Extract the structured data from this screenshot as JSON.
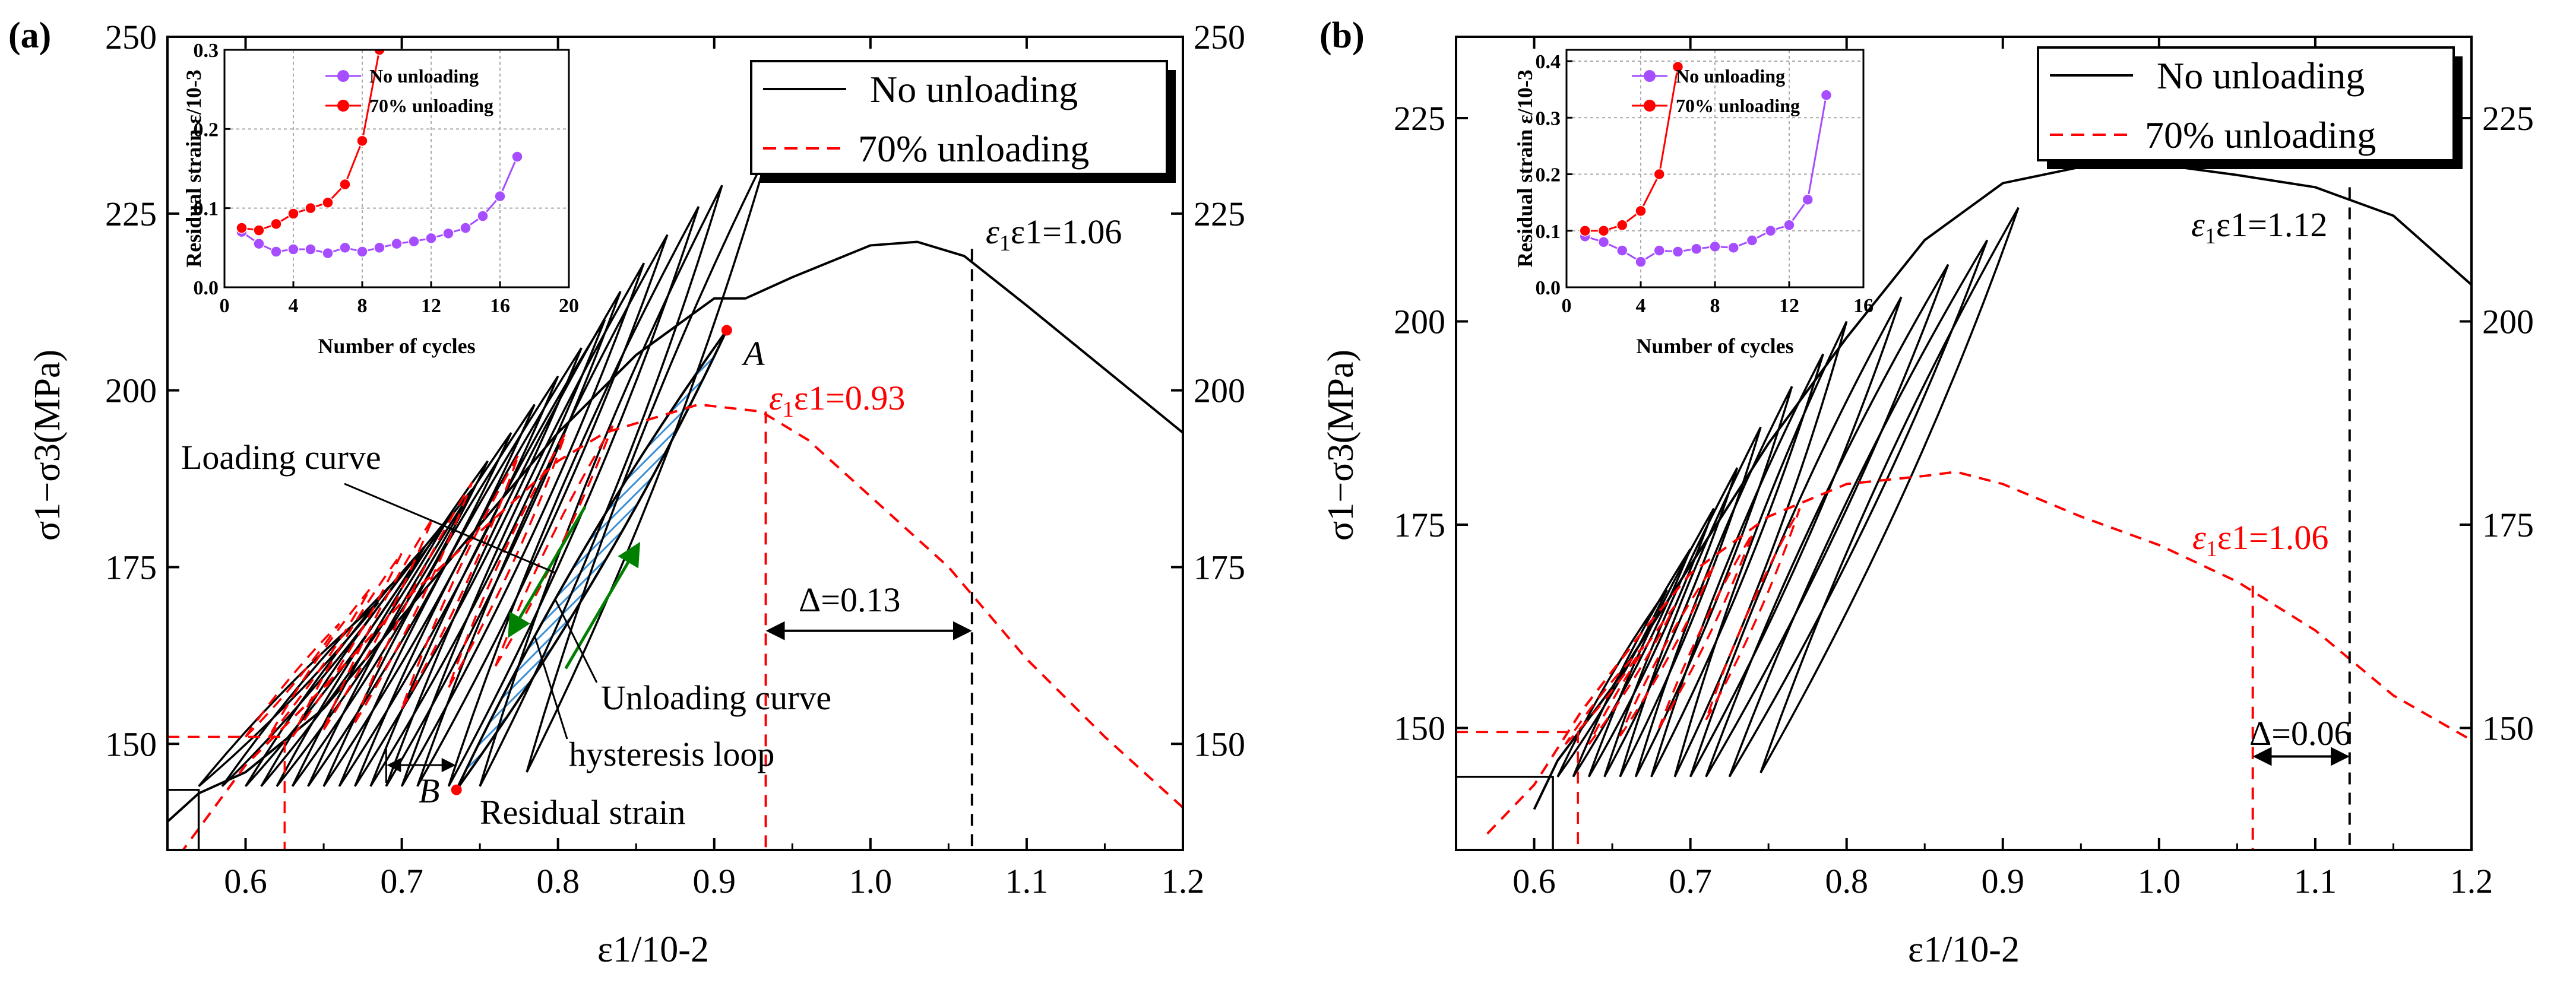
{
  "chart_data": [
    {
      "type": "line",
      "panel_label": "(a)",
      "xlabel": "ε1/10-2",
      "ylabel": "σ1−σ3(MPa)",
      "xlim": [
        0.55,
        1.2
      ],
      "ylim": [
        135,
        250
      ],
      "x_ticks": [
        "0.6",
        "0.7",
        "0.8",
        "0.9",
        "1.0",
        "1.1",
        "1.2"
      ],
      "y_ticks": [
        "150",
        "175",
        "200",
        "225",
        "250"
      ],
      "right_y_ticks": [
        "150",
        "175",
        "200",
        "225",
        "250"
      ],
      "legend": [
        "No unloading",
        "70% unloading"
      ],
      "colors": {
        "no_unloading": "#000000",
        "unloading_70": "#ff0000",
        "arrow": "#008000",
        "hatch": "#3a8fd6"
      },
      "series": [
        {
          "name": "No unloading",
          "style": "solid",
          "envelope": [
            [
              0.55,
              139
            ],
            [
              0.57,
              143
            ],
            [
              0.6,
              146
            ],
            [
              0.65,
              155
            ],
            [
              0.7,
              168
            ],
            [
              0.75,
              181
            ],
            [
              0.8,
              194
            ],
            [
              0.85,
              205
            ],
            [
              0.9,
              213
            ],
            [
              0.92,
              213
            ],
            [
              0.95,
              216
            ],
            [
              1.0,
              220.5
            ],
            [
              1.03,
              221
            ],
            [
              1.06,
              219
            ],
            [
              1.1,
              212
            ],
            [
              1.15,
              203
            ],
            [
              1.2,
              194
            ]
          ],
          "loops": [
            {
              "base": [
                0.57,
                144
              ],
              "peak": [
                0.685,
                170
              ]
            },
            {
              "base": [
                0.585,
                144
              ],
              "peak": [
                0.7,
                174
              ]
            },
            {
              "base": [
                0.6,
                144
              ],
              "peak": [
                0.715,
                178
              ]
            },
            {
              "base": [
                0.61,
                144
              ],
              "peak": [
                0.73,
                182
              ]
            },
            {
              "base": [
                0.62,
                144
              ],
              "peak": [
                0.745,
                186
              ]
            },
            {
              "base": [
                0.63,
                144
              ],
              "peak": [
                0.755,
                190
              ]
            },
            {
              "base": [
                0.64,
                144
              ],
              "peak": [
                0.77,
                194
              ]
            },
            {
              "base": [
                0.65,
                144
              ],
              "peak": [
                0.785,
                198
              ]
            },
            {
              "base": [
                0.66,
                144
              ],
              "peak": [
                0.8,
                202
              ]
            },
            {
              "base": [
                0.67,
                144
              ],
              "peak": [
                0.815,
                206
              ]
            },
            {
              "base": [
                0.68,
                144
              ],
              "peak": [
                0.83,
                210
              ]
            },
            {
              "base": [
                0.69,
                144
              ],
              "peak": [
                0.84,
                214
              ]
            },
            {
              "base": [
                0.7,
                144
              ],
              "peak": [
                0.855,
                218
              ]
            },
            {
              "base": [
                0.71,
                144
              ],
              "peak": [
                0.87,
                222
              ]
            },
            {
              "base": [
                0.73,
                144
              ],
              "peak": [
                0.89,
                226
              ]
            },
            {
              "base": [
                0.75,
                144
              ],
              "peak": [
                0.905,
                229
              ]
            },
            {
              "base": [
                0.78,
                146
              ],
              "peak": [
                0.935,
                234
              ]
            }
          ]
        },
        {
          "name": "70% unloading",
          "style": "dashed",
          "envelope": [
            [
              0.55,
              132
            ],
            [
              0.58,
              141
            ],
            [
              0.6,
              147
            ],
            [
              0.65,
              158
            ],
            [
              0.7,
              170
            ],
            [
              0.75,
              180
            ],
            [
              0.8,
              190
            ],
            [
              0.83,
              194
            ],
            [
              0.86,
              196
            ],
            [
              0.89,
              198
            ],
            [
              0.93,
              197
            ],
            [
              0.96,
              193
            ],
            [
              1.0,
              185
            ],
            [
              1.05,
              175
            ],
            [
              1.1,
              162
            ],
            [
              1.15,
              151
            ],
            [
              1.2,
              141
            ]
          ],
          "loops": [
            {
              "base": [
                0.6,
                151
              ],
              "peak": [
                0.66,
                167
              ]
            },
            {
              "base": [
                0.615,
                151
              ],
              "peak": [
                0.68,
                172
              ]
            },
            {
              "base": [
                0.63,
                151
              ],
              "peak": [
                0.7,
                177
              ]
            },
            {
              "base": [
                0.65,
                152
              ],
              "peak": [
                0.72,
                182
              ]
            },
            {
              "base": [
                0.67,
                153
              ],
              "peak": [
                0.745,
                187
              ]
            },
            {
              "base": [
                0.7,
                155
              ],
              "peak": [
                0.775,
                191
              ]
            },
            {
              "base": [
                0.73,
                158
              ],
              "peak": [
                0.805,
                194
              ]
            },
            {
              "base": [
                0.76,
                161
              ],
              "peak": [
                0.835,
                195
              ]
            }
          ]
        }
      ],
      "annotations": {
        "eps_no_unloading": "ε1=1.06",
        "eps_unloading": "ε1=0.93",
        "delta": "Δ=0.13",
        "loading_curve": "Loading curve",
        "unloading_curve": "Unloading curve",
        "hysteresis_loop": "hysteresis loop",
        "residual_strain": "Residual strain",
        "point_a": "A",
        "point_b": "B"
      },
      "markers": {
        "eps_black_x": 1.065,
        "eps_black_ytop": 220,
        "eps_red_x": 0.933,
        "eps_red_ytop": 197,
        "delta_y": 166,
        "point_a": [
          0.908,
          208.5
        ],
        "point_b": [
          0.735,
          143.5
        ],
        "hatched_loop": {
          "base": [
            0.735,
            143.5
          ],
          "peak": [
            0.908,
            208.5
          ]
        },
        "residual_span": [
          0.69,
          0.735
        ],
        "residual_y": 147,
        "step_black": {
          "x1": 0.55,
          "x2": 0.57,
          "y": 143.5
        },
        "step_red": {
          "x1": 0.55,
          "x2": 0.625,
          "y": 151
        }
      },
      "inset": {
        "xlabel": "Number of cycles",
        "ylabel": "Residual strain ε/10-3",
        "xlim": [
          0,
          20
        ],
        "ylim": [
          0,
          0.3
        ],
        "x_ticks": [
          "0",
          "4",
          "8",
          "12",
          "16",
          "20"
        ],
        "y_ticks": [
          "0.0",
          "0.1",
          "0.2",
          "0.3"
        ],
        "legend": [
          "No unloading",
          "70% unloading"
        ],
        "series": [
          {
            "name": "No unloading",
            "color": "#a54dff",
            "x": [
              1,
              2,
              3,
              4,
              5,
              6,
              7,
              8,
              9,
              10,
              11,
              12,
              13,
              14,
              15,
              16,
              17
            ],
            "y": [
              0.07,
              0.055,
              0.045,
              0.048,
              0.048,
              0.043,
              0.05,
              0.045,
              0.05,
              0.055,
              0.058,
              0.062,
              0.068,
              0.075,
              0.09,
              0.115,
              0.165
            ]
          },
          {
            "name": "70% unloading",
            "color": "#ff0000",
            "x": [
              1,
              2,
              3,
              4,
              5,
              6,
              7,
              8,
              9
            ],
            "y": [
              0.075,
              0.072,
              0.08,
              0.093,
              0.1,
              0.107,
              0.13,
              0.185,
              0.3
            ]
          }
        ]
      }
    },
    {
      "type": "line",
      "panel_label": "(b)",
      "xlabel": "ε1/10-2",
      "ylabel": "σ1−σ3(MPa)",
      "xlim": [
        0.55,
        1.2
      ],
      "ylim": [
        135,
        235
      ],
      "x_ticks": [
        "0.6",
        "0.7",
        "0.8",
        "0.9",
        "1.0",
        "1.1",
        "1.2"
      ],
      "y_ticks": [
        "150",
        "175",
        "200",
        "225"
      ],
      "right_y_ticks": [
        "150",
        "175",
        "200",
        "225"
      ],
      "legend": [
        "No unloading",
        "70% unloading"
      ],
      "colors": {
        "no_unloading": "#000000",
        "unloading_70": "#ff0000"
      },
      "series": [
        {
          "name": "No unloading",
          "style": "solid",
          "envelope": [
            [
              0.6,
              140
            ],
            [
              0.615,
              146
            ],
            [
              0.65,
              155
            ],
            [
              0.7,
              170
            ],
            [
              0.75,
              185
            ],
            [
              0.8,
              198
            ],
            [
              0.85,
              210
            ],
            [
              0.9,
              217
            ],
            [
              0.95,
              219
            ],
            [
              0.98,
              219.5
            ],
            [
              1.0,
              219.3
            ],
            [
              1.05,
              218
            ],
            [
              1.1,
              216.5
            ],
            [
              1.15,
              213
            ],
            [
              1.2,
              204.5
            ]
          ],
          "loops": [
            {
              "base": [
                0.615,
                144
              ],
              "peak": [
                0.685,
                167
              ]
            },
            {
              "base": [
                0.625,
                144
              ],
              "peak": [
                0.7,
                172
              ]
            },
            {
              "base": [
                0.635,
                144
              ],
              "peak": [
                0.715,
                177
              ]
            },
            {
              "base": [
                0.645,
                144
              ],
              "peak": [
                0.73,
                182
              ]
            },
            {
              "base": [
                0.655,
                144
              ],
              "peak": [
                0.745,
                187
              ]
            },
            {
              "base": [
                0.665,
                144
              ],
              "peak": [
                0.765,
                192
              ]
            },
            {
              "base": [
                0.675,
                144
              ],
              "peak": [
                0.785,
                196
              ]
            },
            {
              "base": [
                0.69,
                144
              ],
              "peak": [
                0.8,
                200
              ]
            },
            {
              "base": [
                0.7,
                144
              ],
              "peak": [
                0.835,
                203
              ]
            },
            {
              "base": [
                0.71,
                144
              ],
              "peak": [
                0.865,
                207
              ]
            },
            {
              "base": [
                0.725,
                144
              ],
              "peak": [
                0.89,
                210
              ]
            },
            {
              "base": [
                0.745,
                144.5
              ],
              "peak": [
                0.91,
                214
              ]
            }
          ]
        },
        {
          "name": "70% unloading",
          "style": "dashed",
          "envelope": [
            [
              0.57,
              137
            ],
            [
              0.6,
              143
            ],
            [
              0.63,
              152
            ],
            [
              0.67,
              162
            ],
            [
              0.7,
              169
            ],
            [
              0.75,
              176
            ],
            [
              0.8,
              180
            ],
            [
              0.85,
              181
            ],
            [
              0.87,
              181.5
            ],
            [
              0.9,
              180
            ],
            [
              0.95,
              176
            ],
            [
              1.0,
              172.5
            ],
            [
              1.05,
              168
            ],
            [
              1.1,
              162
            ],
            [
              1.15,
              154
            ],
            [
              1.2,
              148.5
            ]
          ],
          "loops": [
            {
              "base": [
                0.62,
                148
              ],
              "peak": [
                0.67,
                160
              ]
            },
            {
              "base": [
                0.635,
                148
              ],
              "peak": [
                0.69,
                165
              ]
            },
            {
              "base": [
                0.655,
                149
              ],
              "peak": [
                0.715,
                170
              ]
            },
            {
              "base": [
                0.68,
                150
              ],
              "peak": [
                0.74,
                174
              ]
            },
            {
              "base": [
                0.71,
                151
              ],
              "peak": [
                0.77,
                177
              ]
            }
          ]
        }
      ],
      "annotations": {
        "eps_no_unloading": "ε1=1.12",
        "eps_unloading": "ε1=1.06",
        "delta": "Δ=0.06"
      },
      "markers": {
        "eps_black_x": 1.122,
        "eps_black_ytop": 216.5,
        "eps_red_x": 1.06,
        "eps_red_ytop": 167.5,
        "delta_y": 146.5,
        "step_black": {
          "x1": 0.55,
          "x2": 0.612,
          "y": 144
        },
        "step_red": {
          "x1": 0.55,
          "x2": 0.628,
          "y": 149.5
        }
      },
      "inset": {
        "xlabel": "Number of cycles",
        "ylabel": "Residual strain ε/10-3",
        "xlim": [
          0,
          16
        ],
        "ylim": [
          0,
          0.42
        ],
        "x_ticks": [
          "0",
          "4",
          "8",
          "12",
          "16"
        ],
        "y_ticks": [
          "0.0",
          "0.1",
          "0.2",
          "0.3",
          "0.4"
        ],
        "legend": [
          "No unloading",
          "70% unloading"
        ],
        "series": [
          {
            "name": "No unloading",
            "color": "#a54dff",
            "x": [
              1,
              2,
              3,
              4,
              5,
              6,
              7,
              8,
              9,
              10,
              11,
              12,
              13,
              14
            ],
            "y": [
              0.09,
              0.08,
              0.065,
              0.045,
              0.065,
              0.063,
              0.068,
              0.072,
              0.07,
              0.083,
              0.1,
              0.11,
              0.155,
              0.34
            ]
          },
          {
            "name": "70% unloading",
            "color": "#ff0000",
            "x": [
              1,
              2,
              3,
              4,
              5,
              6
            ],
            "y": [
              0.1,
              0.1,
              0.11,
              0.135,
              0.2,
              0.39
            ]
          }
        ]
      }
    }
  ]
}
